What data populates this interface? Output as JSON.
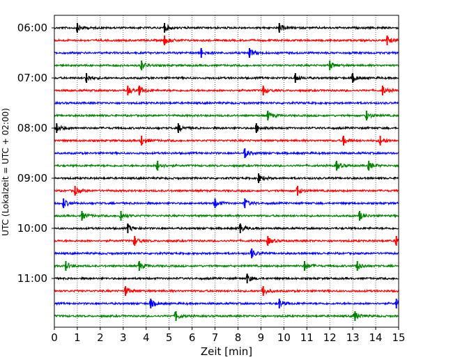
{
  "chart_data": {
    "type": "line",
    "xlabel": "Zeit  [min]",
    "ylabel": "UTC (Lokalzeit = UTC + 02:00)",
    "xlim": [
      0,
      15
    ],
    "x_ticks": [
      "0",
      "1",
      "2",
      "3",
      "4",
      "5",
      "6",
      "7",
      "8",
      "9",
      "10",
      "11",
      "12",
      "13",
      "14",
      "15"
    ],
    "y_ticks": [
      "06:00",
      "07:00",
      "08:00",
      "09:00",
      "10:00",
      "11:00"
    ],
    "grid": "vertical-dotted",
    "trace_interval_min": 15,
    "colors": [
      "#000000",
      "#ff0000",
      "#0000ff",
      "#008000"
    ],
    "series": [
      {
        "start": "06:00",
        "color": "#000000",
        "events": [
          1.0,
          4.8,
          9.8
        ]
      },
      {
        "start": "06:15",
        "color": "#ff0000",
        "events": [
          4.8,
          14.5
        ]
      },
      {
        "start": "06:30",
        "color": "#0000ff",
        "events": [
          6.4,
          8.5
        ]
      },
      {
        "start": "06:45",
        "color": "#008000",
        "events": [
          3.8,
          12.0
        ]
      },
      {
        "start": "07:00",
        "color": "#000000",
        "events": [
          1.4,
          10.5,
          13.0
        ]
      },
      {
        "start": "07:15",
        "color": "#ff0000",
        "events": [
          3.2,
          3.7,
          9.1,
          14.3
        ]
      },
      {
        "start": "07:30",
        "color": "#0000ff",
        "events": []
      },
      {
        "start": "07:45",
        "color": "#008000",
        "events": [
          9.3,
          13.6
        ]
      },
      {
        "start": "08:00",
        "color": "#000000",
        "events": [
          0.1,
          5.4,
          8.8
        ]
      },
      {
        "start": "08:15",
        "color": "#ff0000",
        "events": [
          3.8,
          12.6,
          14.2
        ]
      },
      {
        "start": "08:30",
        "color": "#0000ff",
        "events": [
          8.3
        ]
      },
      {
        "start": "08:45",
        "color": "#008000",
        "events": [
          4.5,
          12.3,
          13.7
        ]
      },
      {
        "start": "09:00",
        "color": "#000000",
        "events": [
          8.9
        ]
      },
      {
        "start": "09:15",
        "color": "#ff0000",
        "events": [
          0.9,
          10.6
        ]
      },
      {
        "start": "09:30",
        "color": "#0000ff",
        "events": [
          0.4,
          7.0,
          8.3
        ]
      },
      {
        "start": "09:45",
        "color": "#008000",
        "events": [
          1.2,
          2.9,
          13.3
        ]
      },
      {
        "start": "10:00",
        "color": "#000000",
        "events": [
          3.2,
          8.1
        ]
      },
      {
        "start": "10:15",
        "color": "#ff0000",
        "events": [
          3.5,
          9.3,
          14.9
        ]
      },
      {
        "start": "10:30",
        "color": "#0000ff",
        "events": [
          8.6
        ]
      },
      {
        "start": "10:45",
        "color": "#008000",
        "events": [
          0.5,
          3.7,
          10.9,
          13.2
        ]
      },
      {
        "start": "11:00",
        "color": "#000000",
        "events": [
          8.4
        ]
      },
      {
        "start": "11:15",
        "color": "#ff0000",
        "events": [
          3.1,
          9.1
        ]
      },
      {
        "start": "11:30",
        "color": "#0000ff",
        "events": [
          4.2,
          9.8,
          14.9
        ]
      },
      {
        "start": "11:45",
        "color": "#008000",
        "events": [
          5.3,
          13.1
        ]
      }
    ]
  }
}
